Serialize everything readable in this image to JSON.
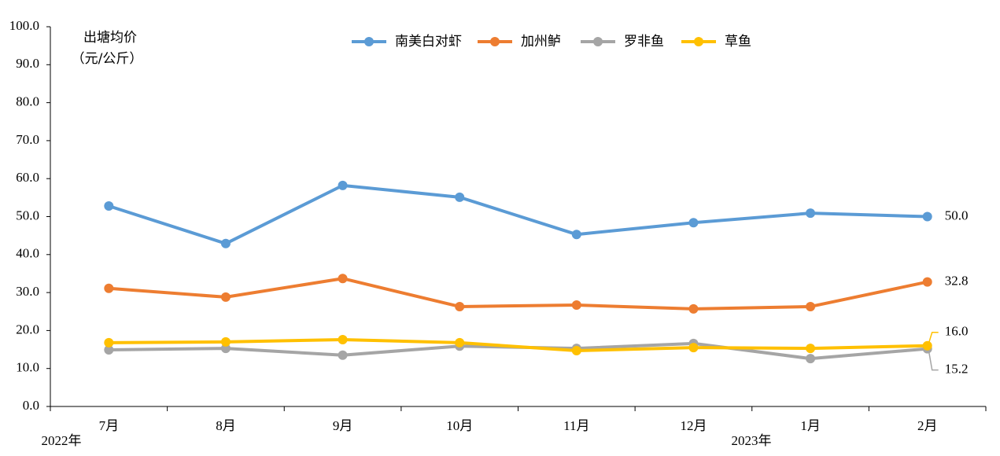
{
  "chart_data": {
    "type": "line",
    "ylabel": [
      "出塘均价",
      "（元/公斤）"
    ],
    "categories": [
      "7月",
      "8月",
      "9月",
      "10月",
      "11月",
      "12月",
      "1月",
      "2月"
    ],
    "year_labels": [
      "2022年",
      "2023年"
    ],
    "series": [
      {
        "name": "南美白对虾",
        "color": "#5b9bd5",
        "values": [
          52.8,
          42.9,
          58.2,
          55.1,
          45.3,
          48.4,
          50.9,
          50.0
        ],
        "value_labels": [
          null,
          null,
          null,
          null,
          null,
          null,
          null,
          "50.0"
        ]
      },
      {
        "name": "加州鲈",
        "color": "#ed7d31",
        "values": [
          31.1,
          28.8,
          33.7,
          26.3,
          26.7,
          25.7,
          26.3,
          32.8
        ],
        "value_labels": [
          null,
          null,
          null,
          null,
          null,
          null,
          null,
          "32.8"
        ]
      },
      {
        "name": "罗非鱼",
        "color": "#a5a5a5",
        "values": [
          14.9,
          15.3,
          13.5,
          15.9,
          15.3,
          16.6,
          12.6,
          15.2
        ],
        "value_labels": [
          null,
          null,
          null,
          null,
          null,
          null,
          null,
          "15.2"
        ]
      },
      {
        "name": "草鱼",
        "color": "#ffc000",
        "values": [
          16.8,
          17.0,
          17.6,
          16.8,
          14.7,
          15.5,
          15.3,
          16.0
        ],
        "value_labels": [
          null,
          null,
          null,
          null,
          null,
          null,
          null,
          "16.0"
        ]
      }
    ],
    "ylim": [
      0,
      100
    ],
    "yticks": [
      {
        "value": 0,
        "label": "0.0"
      },
      {
        "value": 10,
        "label": "10.0"
      },
      {
        "value": 20,
        "label": "20.0"
      },
      {
        "value": 30,
        "label": "30.0"
      },
      {
        "value": 40,
        "label": "40.0"
      },
      {
        "value": 50,
        "label": "50.0"
      },
      {
        "value": 60,
        "label": "60.0"
      },
      {
        "value": 70,
        "label": "70.0"
      },
      {
        "value": 80,
        "label": "80.0"
      },
      {
        "value": 90,
        "label": "90.0"
      },
      {
        "value": 100,
        "label": "100.0"
      }
    ],
    "grid": false
  }
}
